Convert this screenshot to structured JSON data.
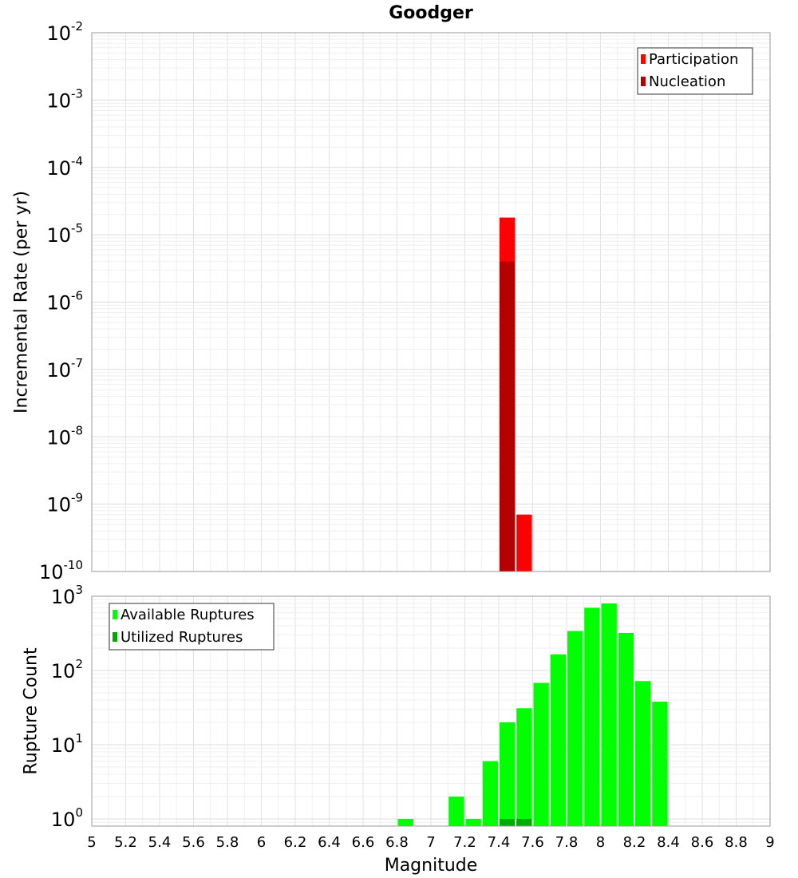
{
  "chart_data": [
    {
      "type": "bar",
      "title": "Goodger",
      "ylabel": "Incremental Rate (per yr)",
      "xlabel": "",
      "yscale": "log",
      "ylim": [
        1e-10,
        0.01
      ],
      "xlim": [
        5,
        9
      ],
      "grid": true,
      "legend_position": "top-right",
      "ytick_labels": [
        {
          "base": "10",
          "exp": "-10"
        },
        {
          "base": "10",
          "exp": "-9"
        },
        {
          "base": "10",
          "exp": "-8"
        },
        {
          "base": "10",
          "exp": "-7"
        },
        {
          "base": "10",
          "exp": "-6"
        },
        {
          "base": "10",
          "exp": "-5"
        },
        {
          "base": "10",
          "exp": "-4"
        },
        {
          "base": "10",
          "exp": "-3"
        },
        {
          "base": "10",
          "exp": "-2"
        }
      ],
      "series": [
        {
          "name": "Participation",
          "color": "#ff0000",
          "x": [
            7.45,
            7.55
          ],
          "values": [
            1.8e-05,
            7e-10
          ]
        },
        {
          "name": "Nucleation",
          "color": "#b30000",
          "x": [
            7.45
          ],
          "values": [
            4e-06
          ]
        }
      ]
    },
    {
      "type": "bar",
      "title": "",
      "ylabel": "Rupture Count",
      "xlabel": "Magnitude",
      "yscale": "log",
      "ylim": [
        0.8,
        1000
      ],
      "xlim": [
        5,
        9
      ],
      "grid": true,
      "legend_position": "top-left",
      "xtick_labels": [
        "5",
        "5.2",
        "5.4",
        "5.6",
        "5.8",
        "6",
        "6.2",
        "6.4",
        "6.6",
        "6.8",
        "7",
        "7.2",
        "7.4",
        "7.6",
        "7.8",
        "8",
        "8.2",
        "8.4",
        "8.6",
        "8.8",
        "9"
      ],
      "ytick_labels": [
        {
          "base": "10",
          "exp": "0"
        },
        {
          "base": "10",
          "exp": "1"
        },
        {
          "base": "10",
          "exp": "2"
        },
        {
          "base": "10",
          "exp": "3"
        }
      ],
      "series": [
        {
          "name": "Available Ruptures",
          "color": "#00ff00",
          "x": [
            6.85,
            7.15,
            7.25,
            7.35,
            7.45,
            7.55,
            7.65,
            7.75,
            7.85,
            7.95,
            8.05,
            8.15,
            8.25,
            8.35
          ],
          "values": [
            1,
            2,
            1,
            6,
            20,
            31,
            68,
            165,
            340,
            700,
            800,
            320,
            72,
            38
          ]
        },
        {
          "name": "Utilized Ruptures",
          "color": "#00aa00",
          "x": [
            7.45,
            7.55
          ],
          "values": [
            1,
            1
          ]
        }
      ]
    }
  ]
}
